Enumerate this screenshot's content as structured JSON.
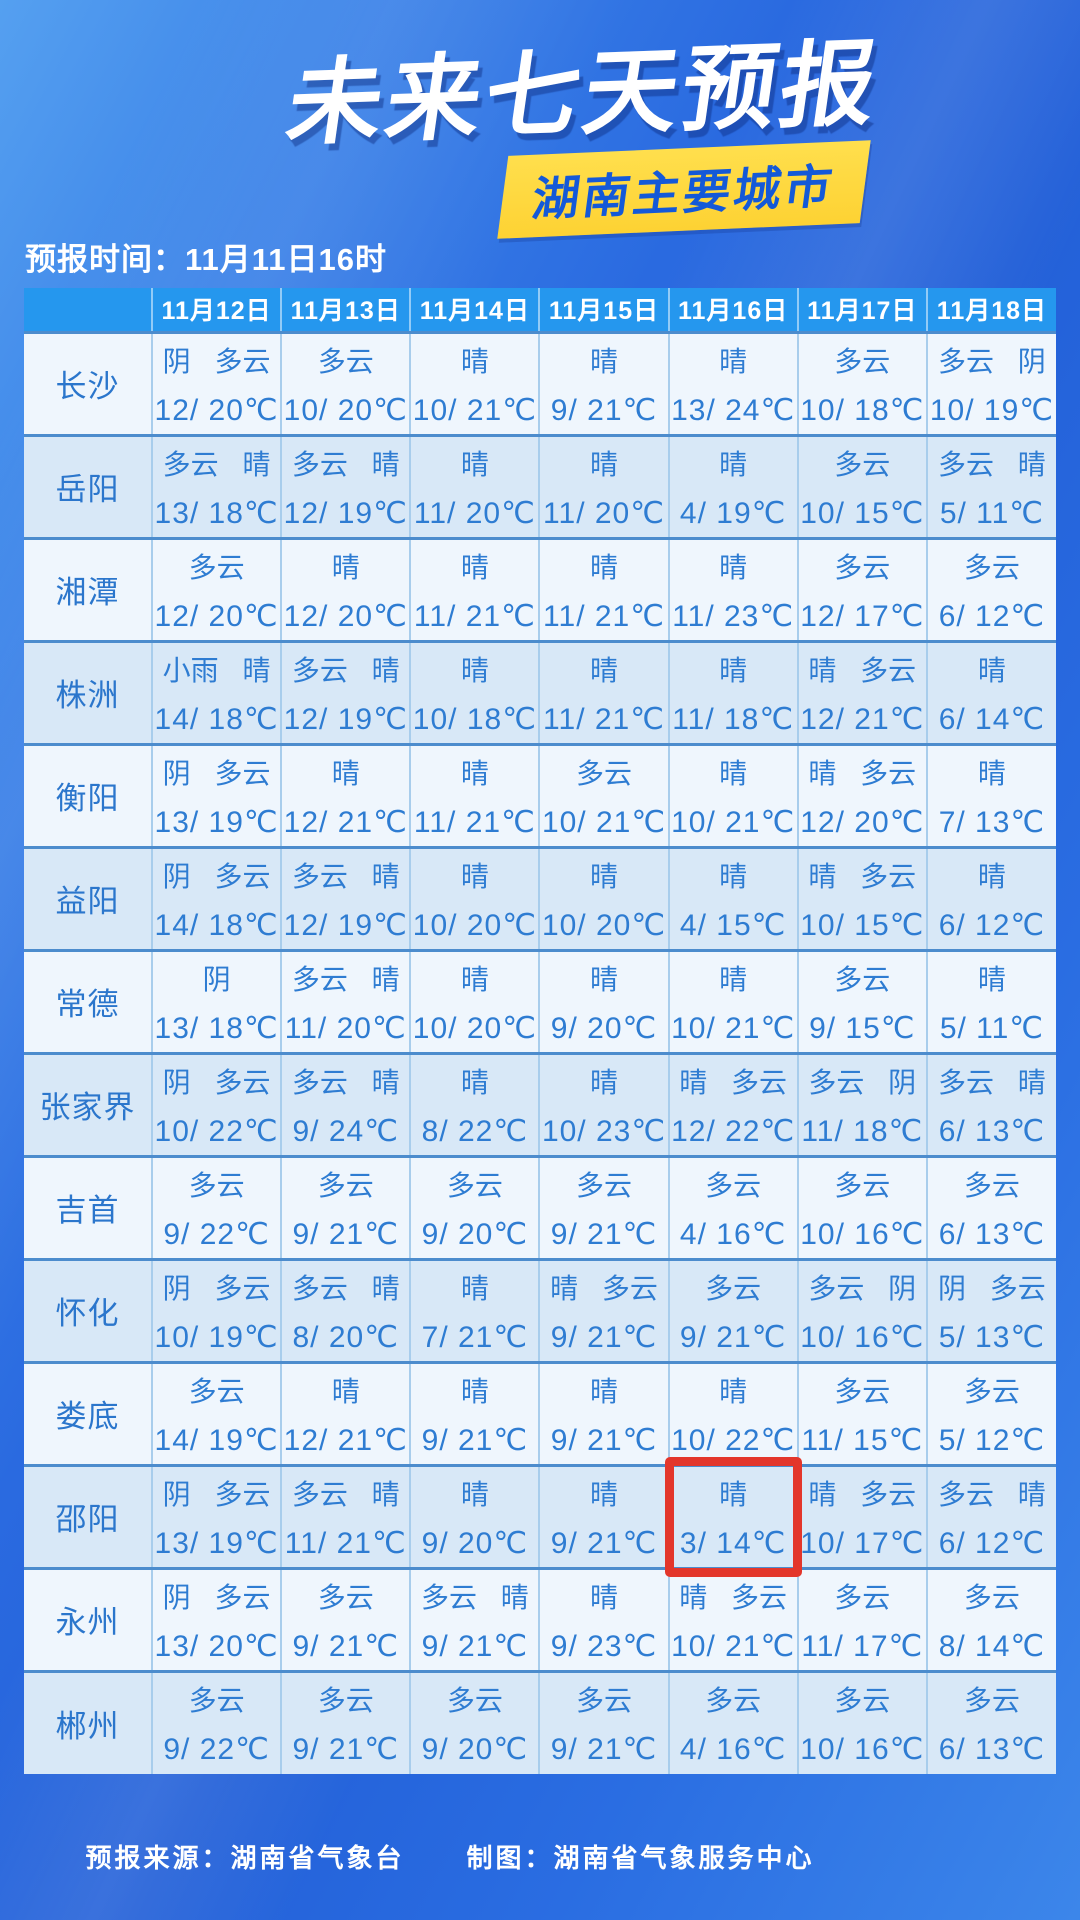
{
  "page": {
    "title": "未来七天预报",
    "subtitle_badge": "湖南主要城市",
    "forecast_time": "预报时间：11月11日16时",
    "footer": {
      "source": "预报来源：湖南省气象台",
      "credit": "制图：湖南省气象服务中心"
    }
  },
  "colors": {
    "header_blue": "#2597ee",
    "badge_yellow": "#fdd233",
    "badge_text_blue": "#1459d8",
    "cell_text_blue": "#2e7cd2",
    "row_light": "#eff6fd",
    "row_shaded": "#d8e8f7",
    "highlight_red": "#e3362b",
    "background_blue": "#2a6ae0"
  },
  "chart_data": {
    "type": "table",
    "title": "未来七天预报",
    "subtitle": "湖南主要城市",
    "forecast_issue_time": "11月11日16时",
    "dates": [
      "11月12日",
      "11月13日",
      "11月14日",
      "11月15日",
      "11月16日",
      "11月17日",
      "11月18日"
    ],
    "highlight": {
      "city": "邵阳",
      "date": "11月16日",
      "row_index": 11,
      "col_index": 4
    },
    "rows": [
      {
        "city": "长沙",
        "cells": [
          {
            "cond": "阴 多云",
            "temp": "12/ 20℃"
          },
          {
            "cond": "多云",
            "temp": "10/ 20℃"
          },
          {
            "cond": "晴",
            "temp": "10/ 21℃"
          },
          {
            "cond": "晴",
            "temp": "9/ 21℃"
          },
          {
            "cond": "晴",
            "temp": "13/ 24℃"
          },
          {
            "cond": "多云",
            "temp": "10/ 18℃"
          },
          {
            "cond": "多云 阴",
            "temp": "10/ 19℃"
          }
        ]
      },
      {
        "city": "岳阳",
        "cells": [
          {
            "cond": "多云 晴",
            "temp": "13/ 18℃"
          },
          {
            "cond": "多云 晴",
            "temp": "12/ 19℃"
          },
          {
            "cond": "晴",
            "temp": "11/ 20℃"
          },
          {
            "cond": "晴",
            "temp": "11/ 20℃"
          },
          {
            "cond": "晴",
            "temp": "4/ 19℃"
          },
          {
            "cond": "多云",
            "temp": "10/ 15℃"
          },
          {
            "cond": "多云 晴",
            "temp": "5/ 11℃"
          }
        ]
      },
      {
        "city": "湘潭",
        "cells": [
          {
            "cond": "多云",
            "temp": "12/ 20℃"
          },
          {
            "cond": "晴",
            "temp": "12/ 20℃"
          },
          {
            "cond": "晴",
            "temp": "11/ 21℃"
          },
          {
            "cond": "晴",
            "temp": "11/ 21℃"
          },
          {
            "cond": "晴",
            "temp": "11/ 23℃"
          },
          {
            "cond": "多云",
            "temp": "12/ 17℃"
          },
          {
            "cond": "多云",
            "temp": "6/ 12℃"
          }
        ]
      },
      {
        "city": "株洲",
        "cells": [
          {
            "cond": "小雨 晴",
            "temp": "14/ 18℃"
          },
          {
            "cond": "多云 晴",
            "temp": "12/ 19℃"
          },
          {
            "cond": "晴",
            "temp": "10/ 18℃"
          },
          {
            "cond": "晴",
            "temp": "11/ 21℃"
          },
          {
            "cond": "晴",
            "temp": "11/ 18℃"
          },
          {
            "cond": "晴 多云",
            "temp": "12/ 21℃"
          },
          {
            "cond": "晴",
            "temp": "6/ 14℃"
          }
        ]
      },
      {
        "city": "衡阳",
        "cells": [
          {
            "cond": "阴 多云",
            "temp": "13/ 19℃"
          },
          {
            "cond": "晴",
            "temp": "12/ 21℃"
          },
          {
            "cond": "晴",
            "temp": "11/ 21℃"
          },
          {
            "cond": "多云",
            "temp": "10/ 21℃"
          },
          {
            "cond": "晴",
            "temp": "10/ 21℃"
          },
          {
            "cond": "晴 多云",
            "temp": "12/ 20℃"
          },
          {
            "cond": "晴",
            "temp": "7/ 13℃"
          }
        ]
      },
      {
        "city": "益阳",
        "cells": [
          {
            "cond": "阴 多云",
            "temp": "14/ 18℃"
          },
          {
            "cond": "多云 晴",
            "temp": "12/ 19℃"
          },
          {
            "cond": "晴",
            "temp": "10/ 20℃"
          },
          {
            "cond": "晴",
            "temp": "10/ 20℃"
          },
          {
            "cond": "晴",
            "temp": "4/ 15℃"
          },
          {
            "cond": "晴 多云",
            "temp": "10/ 15℃"
          },
          {
            "cond": "晴",
            "temp": "6/ 12℃"
          }
        ]
      },
      {
        "city": "常德",
        "cells": [
          {
            "cond": "阴",
            "temp": "13/ 18℃"
          },
          {
            "cond": "多云 晴",
            "temp": "11/ 20℃"
          },
          {
            "cond": "晴",
            "temp": "10/ 20℃"
          },
          {
            "cond": "晴",
            "temp": "9/ 20℃"
          },
          {
            "cond": "晴",
            "temp": "10/ 21℃"
          },
          {
            "cond": "多云",
            "temp": "9/ 15℃"
          },
          {
            "cond": "晴",
            "temp": "5/ 11℃"
          }
        ]
      },
      {
        "city": "张家界",
        "cells": [
          {
            "cond": "阴 多云",
            "temp": "10/ 22℃"
          },
          {
            "cond": "多云 晴",
            "temp": "9/ 24℃"
          },
          {
            "cond": "晴",
            "temp": "8/ 22℃"
          },
          {
            "cond": "晴",
            "temp": "10/ 23℃"
          },
          {
            "cond": "晴 多云",
            "temp": "12/ 22℃"
          },
          {
            "cond": "多云 阴",
            "temp": "11/ 18℃"
          },
          {
            "cond": "多云 晴",
            "temp": "6/ 13℃"
          }
        ]
      },
      {
        "city": "吉首",
        "cells": [
          {
            "cond": "多云",
            "temp": "9/ 22℃"
          },
          {
            "cond": "多云",
            "temp": "9/ 21℃"
          },
          {
            "cond": "多云",
            "temp": "9/ 20℃"
          },
          {
            "cond": "多云",
            "temp": "9/ 21℃"
          },
          {
            "cond": "多云",
            "temp": "4/ 16℃"
          },
          {
            "cond": "多云",
            "temp": "10/ 16℃"
          },
          {
            "cond": "多云",
            "temp": "6/ 13℃"
          }
        ]
      },
      {
        "city": "怀化",
        "cells": [
          {
            "cond": "阴 多云",
            "temp": "10/ 19℃"
          },
          {
            "cond": "多云 晴",
            "temp": "8/ 20℃"
          },
          {
            "cond": "晴",
            "temp": "7/ 21℃"
          },
          {
            "cond": "晴 多云",
            "temp": "9/ 21℃"
          },
          {
            "cond": "多云",
            "temp": "9/ 21℃"
          },
          {
            "cond": "多云 阴",
            "temp": "10/ 16℃"
          },
          {
            "cond": "阴 多云",
            "temp": "5/ 13℃"
          }
        ]
      },
      {
        "city": "娄底",
        "cells": [
          {
            "cond": "多云",
            "temp": "14/ 19℃"
          },
          {
            "cond": "晴",
            "temp": "12/ 21℃"
          },
          {
            "cond": "晴",
            "temp": "9/ 21℃"
          },
          {
            "cond": "晴",
            "temp": "9/ 21℃"
          },
          {
            "cond": "晴",
            "temp": "10/ 22℃"
          },
          {
            "cond": "多云",
            "temp": "11/ 15℃"
          },
          {
            "cond": "多云",
            "temp": "5/ 12℃"
          }
        ]
      },
      {
        "city": "邵阳",
        "cells": [
          {
            "cond": "阴 多云",
            "temp": "13/ 19℃"
          },
          {
            "cond": "多云 晴",
            "temp": "11/ 21℃"
          },
          {
            "cond": "晴",
            "temp": "9/ 20℃"
          },
          {
            "cond": "晴",
            "temp": "9/ 21℃"
          },
          {
            "cond": "晴",
            "temp": "3/ 14℃"
          },
          {
            "cond": "晴 多云",
            "temp": "10/ 17℃"
          },
          {
            "cond": "多云 晴",
            "temp": "6/ 12℃"
          }
        ]
      },
      {
        "city": "永州",
        "cells": [
          {
            "cond": "阴 多云",
            "temp": "13/ 20℃"
          },
          {
            "cond": "多云",
            "temp": "9/ 21℃"
          },
          {
            "cond": "多云 晴",
            "temp": "9/ 21℃"
          },
          {
            "cond": "晴",
            "temp": "9/ 23℃"
          },
          {
            "cond": "晴 多云",
            "temp": "10/ 21℃"
          },
          {
            "cond": "多云",
            "temp": "11/ 17℃"
          },
          {
            "cond": "多云",
            "temp": "8/ 14℃"
          }
        ]
      },
      {
        "city": "郴州",
        "cells": [
          {
            "cond": "多云",
            "temp": "9/ 22℃"
          },
          {
            "cond": "多云",
            "temp": "9/ 21℃"
          },
          {
            "cond": "多云",
            "temp": "9/ 20℃"
          },
          {
            "cond": "多云",
            "temp": "9/ 21℃"
          },
          {
            "cond": "多云",
            "temp": "4/ 16℃"
          },
          {
            "cond": "多云",
            "temp": "10/ 16℃"
          },
          {
            "cond": "多云",
            "temp": "6/ 13℃"
          }
        ]
      }
    ]
  }
}
